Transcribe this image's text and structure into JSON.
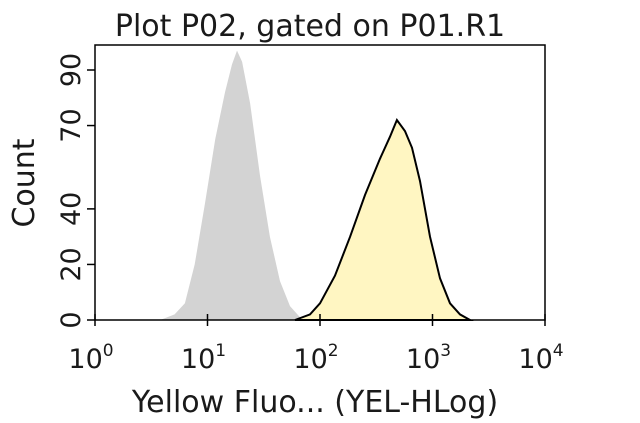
{
  "chart_data": {
    "type": "histogram-area",
    "title": "Plot P02, gated on P01.R1",
    "x_label": "Yellow Fluo... (YEL-HLog)",
    "y_label": "Count",
    "x_log": true,
    "xlim": [
      1,
      10000
    ],
    "xticks": [
      {
        "value": 1,
        "label": "10",
        "sup": "0"
      },
      {
        "value": 10,
        "label": "10",
        "sup": "1"
      },
      {
        "value": 100,
        "label": "10",
        "sup": "2"
      },
      {
        "value": 1000,
        "label": "10",
        "sup": "3"
      },
      {
        "value": 10000,
        "label": "10",
        "sup": "4"
      }
    ],
    "ylim": [
      0,
      99
    ],
    "yticks": [
      0,
      20,
      40,
      70,
      90
    ],
    "series": [
      {
        "color": "#d3d3d3",
        "outline": false,
        "x": [
          3.8,
          5.1,
          6.3,
          7.7,
          9.5,
          11.7,
          14.3,
          16.5,
          18.3,
          20.3,
          23.9,
          29.3,
          35.9,
          44.1,
          54.1,
          66.4,
          73.6
        ],
        "values": [
          0,
          2,
          6,
          20,
          42,
          65,
          82,
          92,
          97,
          93,
          78,
          52,
          30,
          14,
          5,
          1,
          0
        ]
      },
      {
        "color": "#fff6c2",
        "outline": true,
        "x": [
          60,
          81.5,
          100,
          136,
          185,
          251,
          341,
          419,
          483,
          570,
          657,
          774,
          950,
          1166,
          1432,
          1754,
          2154
        ],
        "values": [
          0,
          2,
          6,
          16,
          30,
          45,
          58,
          66,
          72,
          68,
          62,
          50,
          30,
          15,
          6,
          2,
          0
        ]
      }
    ]
  }
}
